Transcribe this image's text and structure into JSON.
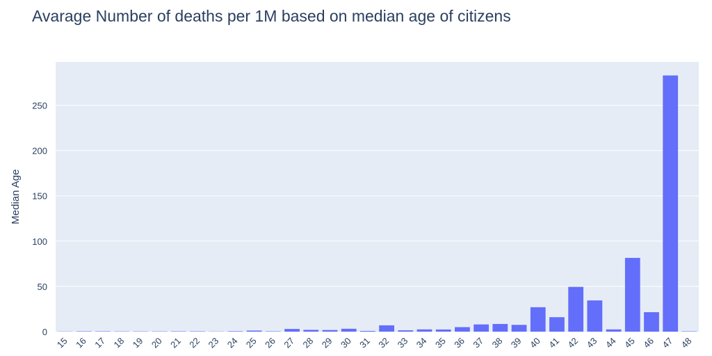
{
  "chart_data": {
    "type": "bar",
    "title": "Avarage Number of deaths per 1M based on median age of citizens",
    "xlabel": "",
    "ylabel": "Median Age",
    "categories": [
      "15",
      "16",
      "17",
      "18",
      "19",
      "20",
      "21",
      "22",
      "23",
      "24",
      "25",
      "26",
      "27",
      "28",
      "29",
      "30",
      "31",
      "32",
      "33",
      "34",
      "35",
      "36",
      "37",
      "38",
      "39",
      "40",
      "41",
      "42",
      "43",
      "44",
      "45",
      "46",
      "47",
      "48"
    ],
    "values": [
      0.2,
      0.4,
      0.4,
      0.3,
      0.3,
      0.3,
      0.4,
      0.4,
      0.2,
      0.5,
      1.2,
      0.4,
      3.0,
      2.0,
      1.8,
      3.2,
      0.8,
      7.0,
      1.5,
      2.5,
      2.4,
      5.0,
      8.0,
      8.5,
      7.5,
      27.0,
      16.0,
      49.5,
      34.5,
      2.5,
      81.5,
      21.5,
      283.0,
      0.4
    ],
    "ylim": [
      0,
      298
    ],
    "yticks": [
      0,
      50,
      100,
      150,
      200,
      250
    ],
    "grid": true,
    "colors": {
      "bar": "#636efa",
      "plot_bg": "#e5ecf6",
      "grid": "#ffffff",
      "text": "#2a3f5f"
    }
  }
}
